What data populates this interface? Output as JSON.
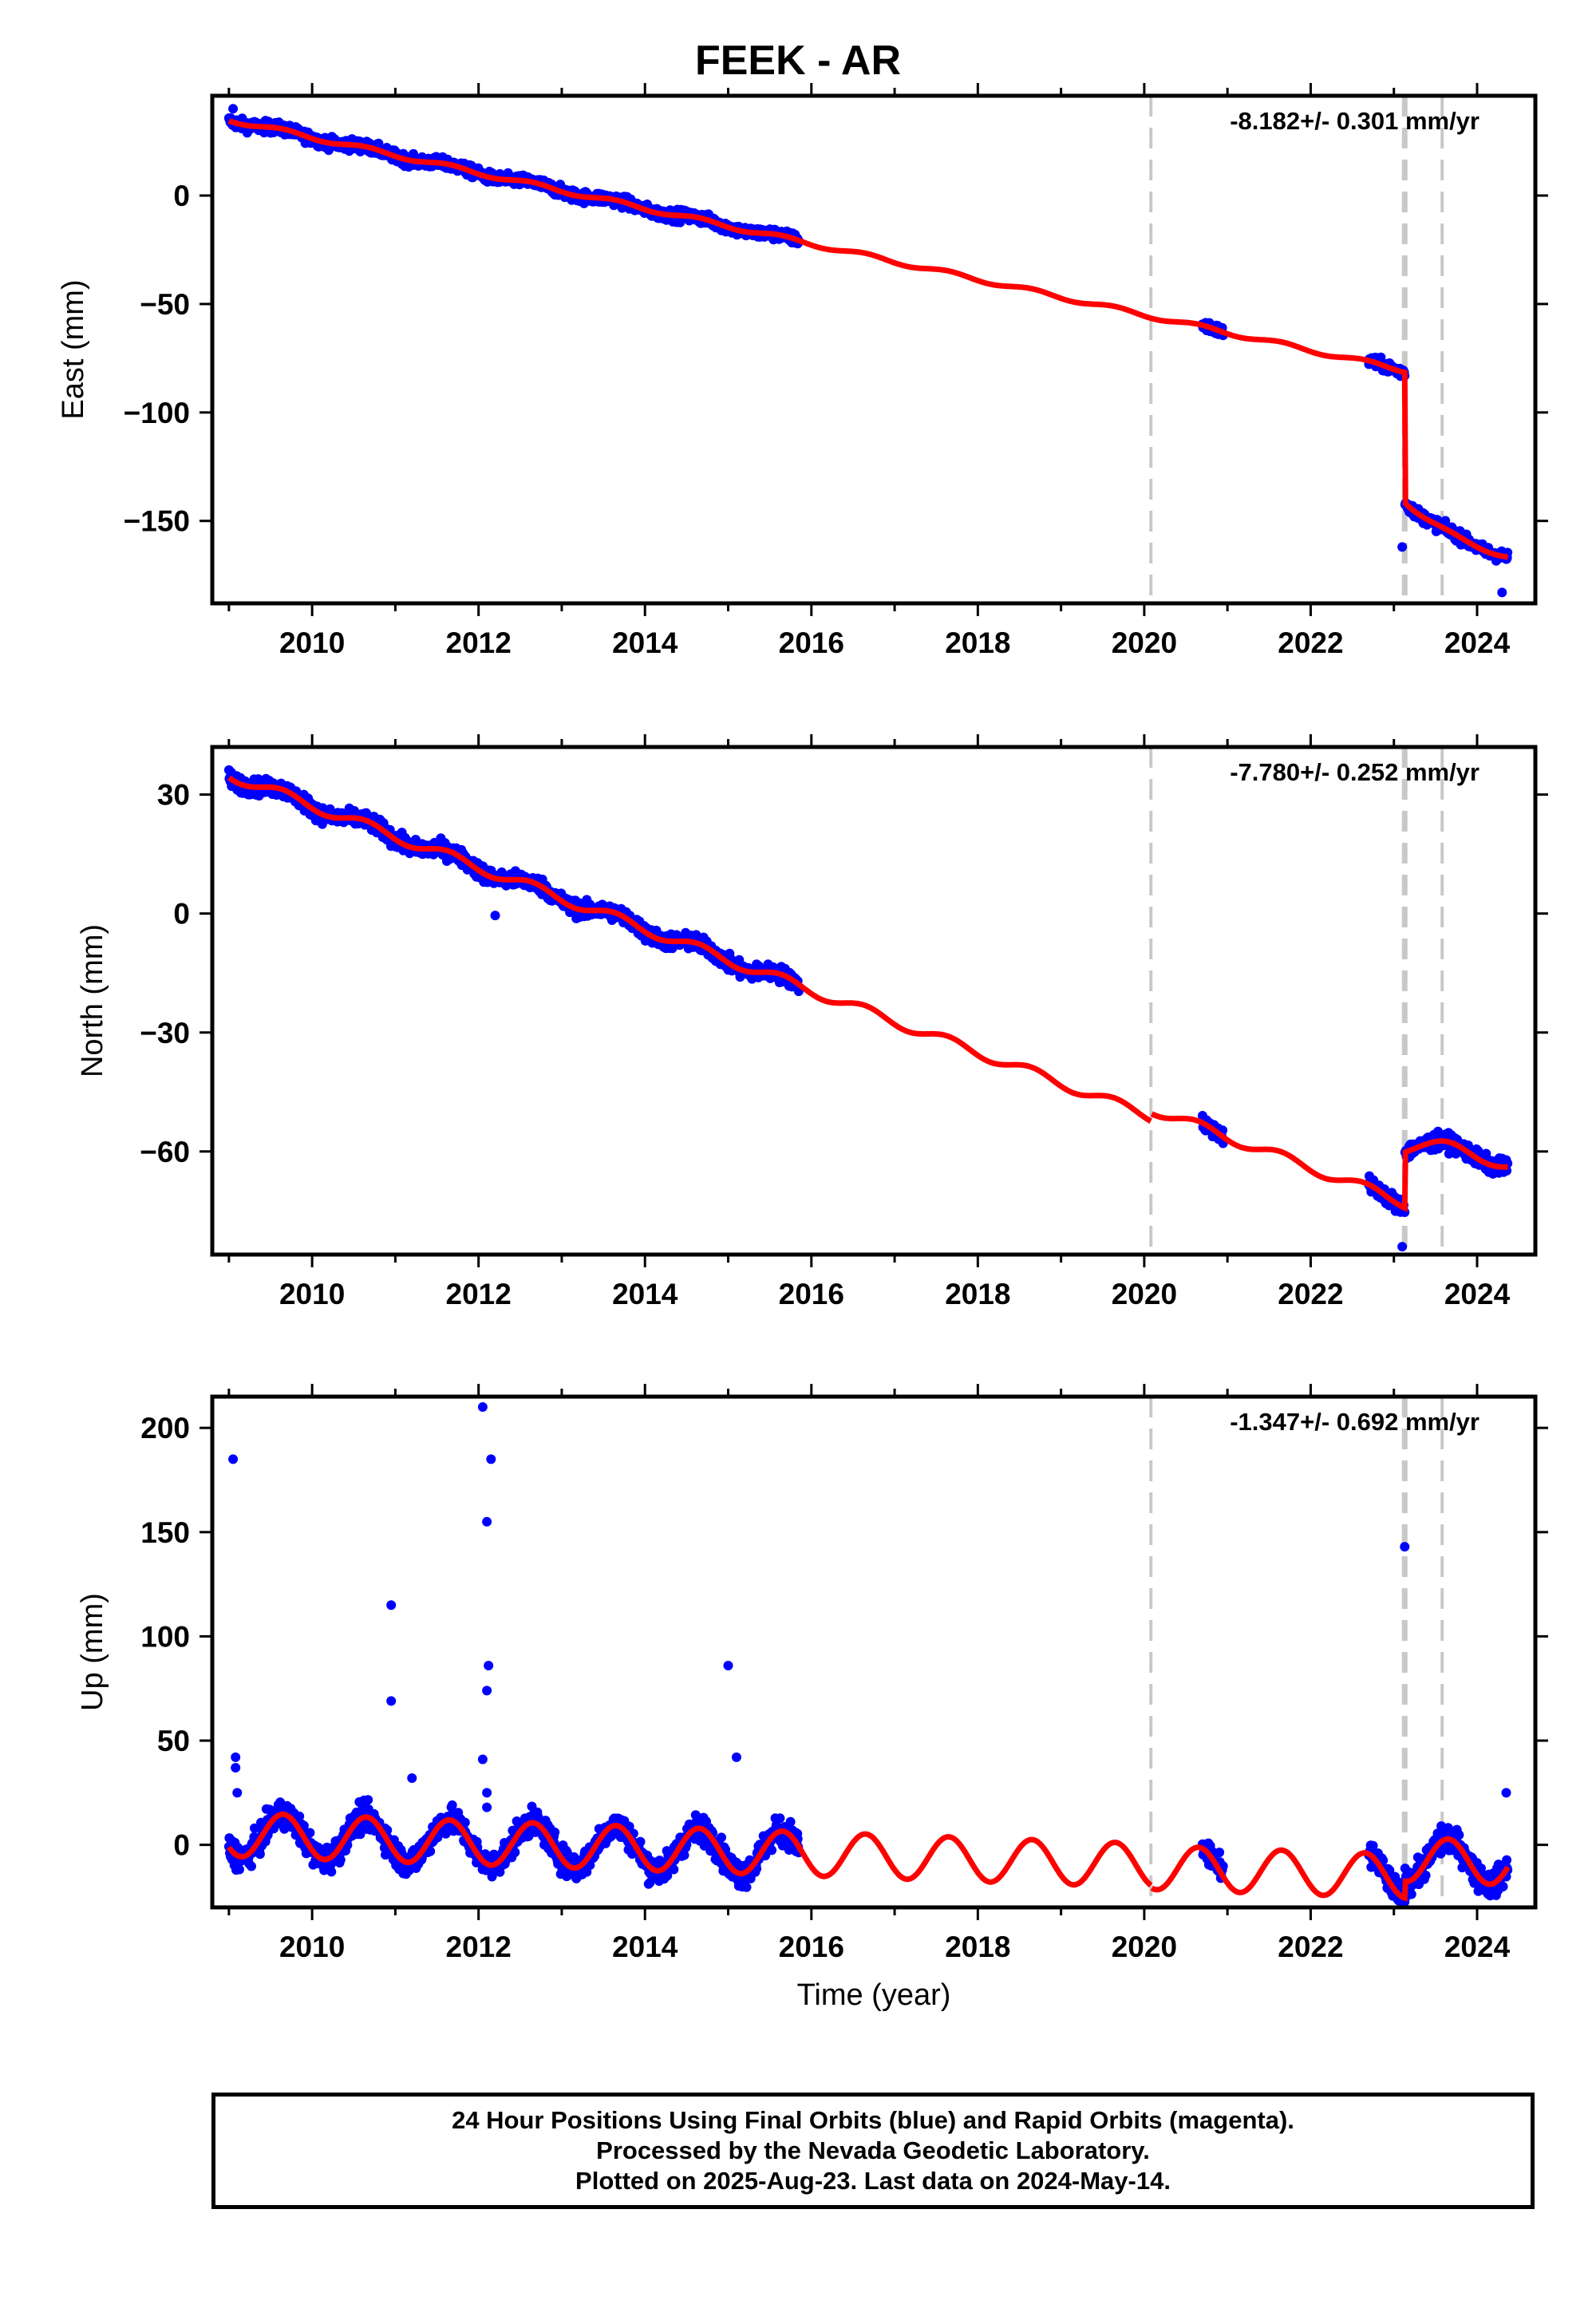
{
  "title": "FEEK - AR",
  "footer": {
    "line1": "24 Hour Positions Using Final Orbits (blue) and Rapid Orbits (magenta).",
    "line2": "Processed by the Nevada Geodetic Laboratory.",
    "line3": "Plotted on 2025-Aug-23. Last data on 2024-May-14."
  },
  "colors": {
    "observations": "#0000ff",
    "model": "#ff0000",
    "event_lines": "#c8c8c8"
  },
  "chart_data": [
    {
      "type": "scatter",
      "ylabel": "East (mm)",
      "xlabel": "",
      "rate_text": "-8.182+/- 0.301 mm/yr",
      "xlim": [
        2008.8,
        2024.7
      ],
      "ylim": [
        -188,
        46
      ],
      "x_ticks": [
        2010,
        2012,
        2014,
        2016,
        2018,
        2020,
        2022,
        2024
      ],
      "y_ticks": [
        0,
        -50,
        -100,
        -150
      ],
      "y_tick_labels": [
        "0",
        "−50",
        "−100",
        "−150"
      ],
      "event_lines": [
        2020.08,
        2023.13,
        2023.58
      ],
      "data_segments": [
        [
          2009.0,
          2015.85
        ],
        [
          2020.7,
          2020.95
        ],
        [
          2022.7,
          2024.37
        ]
      ],
      "model": {
        "rate": -8.182,
        "y0": 35,
        "t0": 2009.0,
        "annual_amp": 1.0,
        "offsets": [
          {
            "t": 2023.13,
            "value": -60
          }
        ],
        "postseismic": {
          "t": 2023.13,
          "amp": -18,
          "tau": 0.6
        }
      },
      "outliers": [
        [
          2023.1,
          -162
        ],
        [
          2009.05,
          40
        ],
        [
          2024.3,
          -183
        ]
      ]
    },
    {
      "type": "scatter",
      "ylabel": "North (mm)",
      "xlabel": "",
      "rate_text": "-7.780+/- 0.252 mm/yr",
      "xlim": [
        2008.8,
        2024.7
      ],
      "ylim": [
        -86,
        42
      ],
      "x_ticks": [
        2010,
        2012,
        2014,
        2016,
        2018,
        2020,
        2022,
        2024
      ],
      "y_ticks": [
        30,
        0,
        -30,
        -60
      ],
      "y_tick_labels": [
        "30",
        "0",
        "−30",
        "−60"
      ],
      "event_lines": [
        2020.08,
        2023.13,
        2023.58
      ],
      "data_segments": [
        [
          2009.0,
          2015.85
        ],
        [
          2020.7,
          2020.95
        ],
        [
          2022.7,
          2024.37
        ]
      ],
      "model": {
        "rate": -7.78,
        "y0": 35,
        "t0": 2009.0,
        "annual_amp": 1.3,
        "offsets": [
          {
            "t": 2020.08,
            "value": 2
          },
          {
            "t": 2023.13,
            "value": 14
          }
        ],
        "postseismic": {
          "t": 2023.13,
          "amp": 5,
          "tau": 0.3
        }
      },
      "outliers": [
        [
          2023.1,
          -84
        ],
        [
          2012.2,
          -0.5
        ],
        [
          2014.85,
          -12
        ],
        [
          2009.9,
          30
        ]
      ]
    },
    {
      "type": "scatter",
      "ylabel": "Up (mm)",
      "xlabel": "Time (year)",
      "rate_text": "-1.347+/- 0.692 mm/yr",
      "xlim": [
        2008.8,
        2024.7
      ],
      "ylim": [
        -30,
        215
      ],
      "x_ticks": [
        2010,
        2012,
        2014,
        2016,
        2018,
        2020,
        2022,
        2024
      ],
      "y_ticks": [
        200,
        150,
        100,
        50,
        0
      ],
      "y_tick_labels": [
        "200",
        "150",
        "100",
        "50",
        "0"
      ],
      "event_lines": [
        2020.08,
        2023.13,
        2023.58
      ],
      "data_segments": [
        [
          2009.0,
          2015.85
        ],
        [
          2020.7,
          2020.95
        ],
        [
          2022.7,
          2024.37
        ]
      ],
      "model": {
        "rate": -1.347,
        "y0": 5,
        "t0": 2009.0,
        "annual_amp": 10.5,
        "offsets": [
          {
            "t": 2020.08,
            "value": -1
          },
          {
            "t": 2023.13,
            "value": 8
          }
        ],
        "postseismic": null
      },
      "outliers": [
        [
          2009.05,
          185
        ],
        [
          2009.08,
          42
        ],
        [
          2009.08,
          37
        ],
        [
          2009.1,
          25
        ],
        [
          2010.95,
          115
        ],
        [
          2010.95,
          69
        ],
        [
          2011.2,
          32
        ],
        [
          2012.05,
          210
        ],
        [
          2012.1,
          155
        ],
        [
          2012.12,
          86
        ],
        [
          2012.1,
          74
        ],
        [
          2012.15,
          185
        ],
        [
          2012.05,
          41
        ],
        [
          2012.1,
          25
        ],
        [
          2012.1,
          18
        ],
        [
          2015.0,
          86
        ],
        [
          2015.1,
          42
        ],
        [
          2023.13,
          143
        ],
        [
          2024.35,
          25
        ]
      ]
    }
  ]
}
